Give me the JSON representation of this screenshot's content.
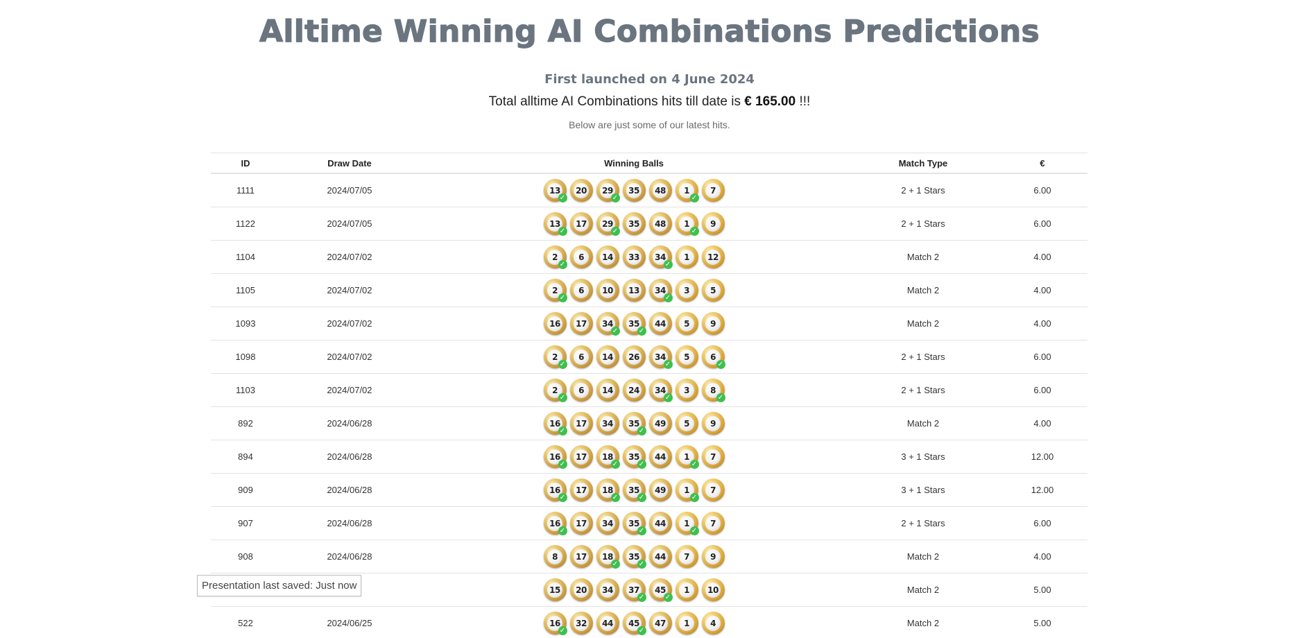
{
  "title": "Alltime Winning AI Combinations Predictions",
  "launched": "First launched on 4 June 2024",
  "total": {
    "prefix": "Total alltime AI Combinations hits till date is",
    "amount": "€ 165.00",
    "suffix": "!!!"
  },
  "below_text": "Below are just some of our latest hits.",
  "table": {
    "headers": [
      "ID",
      "Draw Date",
      "Winning Balls",
      "Match Type",
      "€"
    ],
    "rows": [
      {
        "id": "1111",
        "date": "2024/07/05",
        "match": "2 + 1 Stars",
        "eur": "6.00",
        "balls": [
          {
            "n": "13",
            "hit": true
          },
          {
            "n": "20",
            "hit": false
          },
          {
            "n": "29",
            "hit": true
          },
          {
            "n": "35",
            "hit": false
          },
          {
            "n": "48",
            "hit": false
          }
        ],
        "stars": [
          {
            "n": "1",
            "hit": true
          },
          {
            "n": "7",
            "hit": false
          }
        ]
      },
      {
        "id": "1122",
        "date": "2024/07/05",
        "match": "2 + 1 Stars",
        "eur": "6.00",
        "balls": [
          {
            "n": "13",
            "hit": true
          },
          {
            "n": "17",
            "hit": false
          },
          {
            "n": "29",
            "hit": true
          },
          {
            "n": "35",
            "hit": false
          },
          {
            "n": "48",
            "hit": false
          }
        ],
        "stars": [
          {
            "n": "1",
            "hit": true
          },
          {
            "n": "9",
            "hit": false
          }
        ]
      },
      {
        "id": "1104",
        "date": "2024/07/02",
        "match": "Match 2",
        "eur": "4.00",
        "balls": [
          {
            "n": "2",
            "hit": true
          },
          {
            "n": "6",
            "hit": false
          },
          {
            "n": "14",
            "hit": false
          },
          {
            "n": "33",
            "hit": false
          },
          {
            "n": "34",
            "hit": true
          }
        ],
        "stars": [
          {
            "n": "1",
            "hit": false
          },
          {
            "n": "12",
            "hit": false
          }
        ]
      },
      {
        "id": "1105",
        "date": "2024/07/02",
        "match": "Match 2",
        "eur": "4.00",
        "balls": [
          {
            "n": "2",
            "hit": true
          },
          {
            "n": "6",
            "hit": false
          },
          {
            "n": "10",
            "hit": false
          },
          {
            "n": "13",
            "hit": false
          },
          {
            "n": "34",
            "hit": true
          }
        ],
        "stars": [
          {
            "n": "3",
            "hit": false
          },
          {
            "n": "5",
            "hit": false
          }
        ]
      },
      {
        "id": "1093",
        "date": "2024/07/02",
        "match": "Match 2",
        "eur": "4.00",
        "balls": [
          {
            "n": "16",
            "hit": false
          },
          {
            "n": "17",
            "hit": false
          },
          {
            "n": "34",
            "hit": true
          },
          {
            "n": "35",
            "hit": true
          },
          {
            "n": "44",
            "hit": false
          }
        ],
        "stars": [
          {
            "n": "5",
            "hit": false
          },
          {
            "n": "9",
            "hit": false
          }
        ]
      },
      {
        "id": "1098",
        "date": "2024/07/02",
        "match": "2 + 1 Stars",
        "eur": "6.00",
        "balls": [
          {
            "n": "2",
            "hit": true
          },
          {
            "n": "6",
            "hit": false
          },
          {
            "n": "14",
            "hit": false
          },
          {
            "n": "26",
            "hit": false
          },
          {
            "n": "34",
            "hit": true
          }
        ],
        "stars": [
          {
            "n": "5",
            "hit": false
          },
          {
            "n": "6",
            "hit": true
          }
        ]
      },
      {
        "id": "1103",
        "date": "2024/07/02",
        "match": "2 + 1 Stars",
        "eur": "6.00",
        "balls": [
          {
            "n": "2",
            "hit": true
          },
          {
            "n": "6",
            "hit": false
          },
          {
            "n": "14",
            "hit": false
          },
          {
            "n": "24",
            "hit": false
          },
          {
            "n": "34",
            "hit": true
          }
        ],
        "stars": [
          {
            "n": "3",
            "hit": false
          },
          {
            "n": "8",
            "hit": true
          }
        ]
      },
      {
        "id": "892",
        "date": "2024/06/28",
        "match": "Match 2",
        "eur": "4.00",
        "balls": [
          {
            "n": "16",
            "hit": true
          },
          {
            "n": "17",
            "hit": false
          },
          {
            "n": "34",
            "hit": false
          },
          {
            "n": "35",
            "hit": true
          },
          {
            "n": "49",
            "hit": false
          }
        ],
        "stars": [
          {
            "n": "5",
            "hit": false
          },
          {
            "n": "9",
            "hit": false
          }
        ]
      },
      {
        "id": "894",
        "date": "2024/06/28",
        "match": "3 + 1 Stars",
        "eur": "12.00",
        "balls": [
          {
            "n": "16",
            "hit": true
          },
          {
            "n": "17",
            "hit": false
          },
          {
            "n": "18",
            "hit": true
          },
          {
            "n": "35",
            "hit": true
          },
          {
            "n": "44",
            "hit": false
          }
        ],
        "stars": [
          {
            "n": "1",
            "hit": true
          },
          {
            "n": "7",
            "hit": false
          }
        ]
      },
      {
        "id": "909",
        "date": "2024/06/28",
        "match": "3 + 1 Stars",
        "eur": "12.00",
        "balls": [
          {
            "n": "16",
            "hit": true
          },
          {
            "n": "17",
            "hit": false
          },
          {
            "n": "18",
            "hit": true
          },
          {
            "n": "35",
            "hit": true
          },
          {
            "n": "49",
            "hit": false
          }
        ],
        "stars": [
          {
            "n": "1",
            "hit": true
          },
          {
            "n": "7",
            "hit": false
          }
        ]
      },
      {
        "id": "907",
        "date": "2024/06/28",
        "match": "2 + 1 Stars",
        "eur": "6.00",
        "balls": [
          {
            "n": "16",
            "hit": true
          },
          {
            "n": "17",
            "hit": false
          },
          {
            "n": "34",
            "hit": false
          },
          {
            "n": "35",
            "hit": true
          },
          {
            "n": "44",
            "hit": false
          }
        ],
        "stars": [
          {
            "n": "1",
            "hit": true
          },
          {
            "n": "7",
            "hit": false
          }
        ]
      },
      {
        "id": "908",
        "date": "2024/06/28",
        "match": "Match 2",
        "eur": "4.00",
        "balls": [
          {
            "n": "8",
            "hit": false
          },
          {
            "n": "17",
            "hit": false
          },
          {
            "n": "18",
            "hit": true
          },
          {
            "n": "35",
            "hit": true
          },
          {
            "n": "44",
            "hit": false
          }
        ],
        "stars": [
          {
            "n": "7",
            "hit": false
          },
          {
            "n": "9",
            "hit": false
          }
        ]
      },
      {
        "id": "",
        "date": "25",
        "match": "Match 2",
        "eur": "5.00",
        "balls": [
          {
            "n": "15",
            "hit": false
          },
          {
            "n": "20",
            "hit": false
          },
          {
            "n": "34",
            "hit": false
          },
          {
            "n": "37",
            "hit": true
          },
          {
            "n": "45",
            "hit": true
          }
        ],
        "stars": [
          {
            "n": "1",
            "hit": false
          },
          {
            "n": "10",
            "hit": false
          }
        ]
      },
      {
        "id": "522",
        "date": "2024/06/25",
        "match": "Match 2",
        "eur": "5.00",
        "balls": [
          {
            "n": "16",
            "hit": true
          },
          {
            "n": "32",
            "hit": false
          },
          {
            "n": "44",
            "hit": false
          },
          {
            "n": "45",
            "hit": true
          },
          {
            "n": "47",
            "hit": false
          }
        ],
        "stars": [
          {
            "n": "1",
            "hit": false
          },
          {
            "n": "4",
            "hit": false
          }
        ]
      }
    ]
  },
  "tooltip": "Presentation last saved: Just now"
}
